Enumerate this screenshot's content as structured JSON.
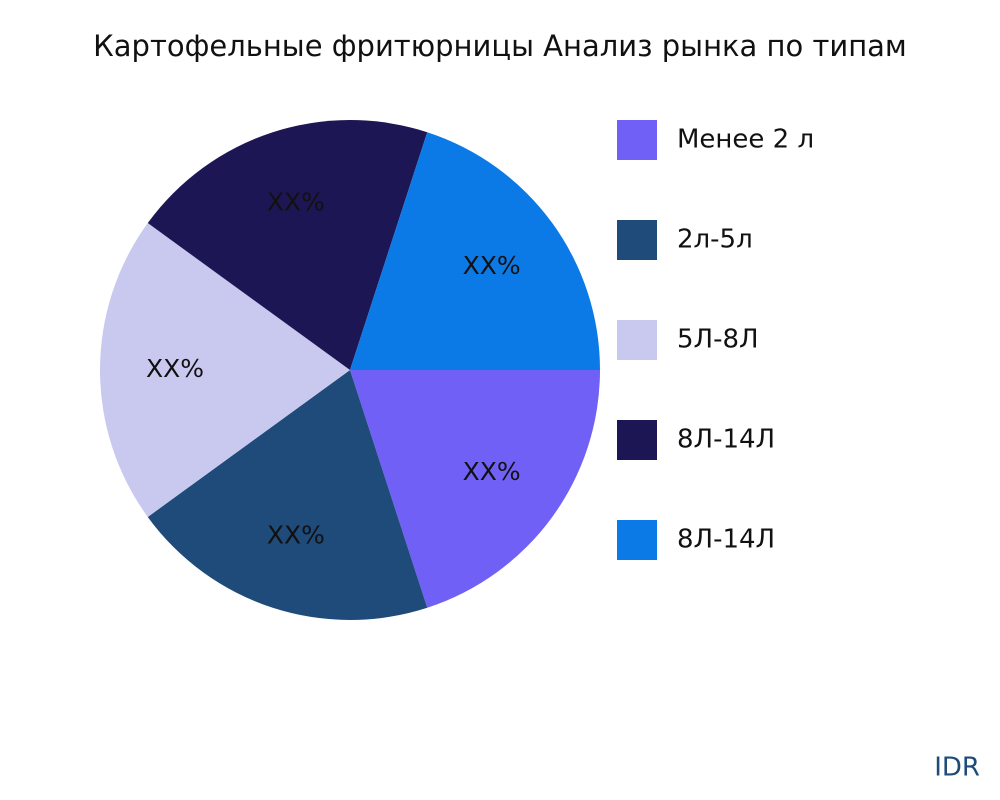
{
  "chart_data": {
    "type": "pie",
    "title": "Картофельные фритюрницы Анализ рынка по типам",
    "categories": [
      "Менее 2 л",
      "2л-5л",
      "5Л-8Л",
      "8Л-14Л",
      "8Л-14Л"
    ],
    "values": [
      20,
      20,
      20,
      20,
      20
    ],
    "value_labels": [
      "XX%",
      "XX%",
      "XX%",
      "XX%",
      "XX%"
    ],
    "colors": [
      "#7060f5",
      "#1f4b7a",
      "#c9c9f0",
      "#1c1754",
      "#0b7ae6"
    ],
    "legend": "right",
    "watermark": "IDR"
  }
}
